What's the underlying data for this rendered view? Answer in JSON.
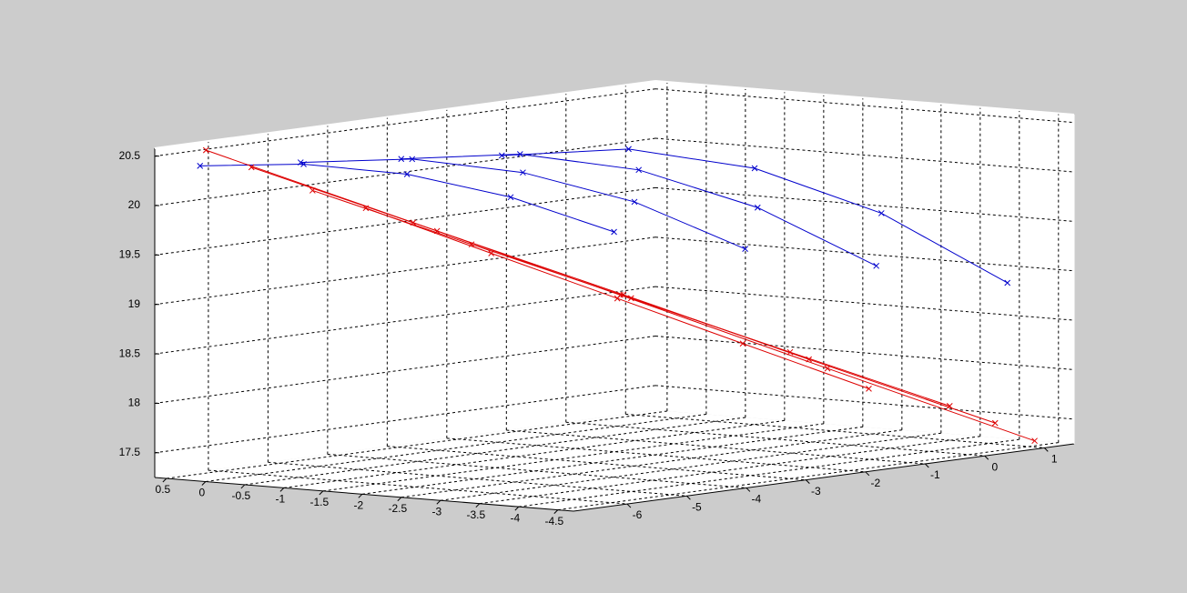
{
  "chart_data": {
    "type": "line3d",
    "xlim": [
      0.65,
      -4.7
    ],
    "ylim": [
      -6.9,
      1.5
    ],
    "zlim": [
      17.25,
      20.58
    ],
    "xticks": [
      0.5,
      0,
      -0.5,
      -1,
      -1.5,
      -2,
      -2.5,
      -3,
      -3.5,
      -4,
      -4.5
    ],
    "yticks": [
      -6,
      -5,
      -4,
      -3,
      -2,
      -1,
      0,
      1
    ],
    "zticks": [
      17.5,
      18,
      18.5,
      19,
      19.5,
      20,
      20.5
    ],
    "grid": true,
    "series": [
      {
        "color": "#0000cc",
        "x": [
          0.3,
          -0.78,
          -1.85,
          -2.93,
          -4.0
        ],
        "y": [
          -6.6,
          -6.28,
          -5.95,
          -5.63,
          -5.3
        ],
        "z": [
          20.4,
          20.46,
          20.4,
          20.21,
          19.9
        ]
      },
      {
        "color": "#0000cc",
        "x": [
          -0.3,
          -1.23,
          -2.15,
          -3.08,
          -4.0
        ],
        "y": [
          -5.7,
          -5.05,
          -4.4,
          -3.75,
          -3.1
        ],
        "z": [
          20.4,
          20.44,
          20.31,
          20.02,
          19.55
        ]
      },
      {
        "color": "#0000cc",
        "x": [
          -0.9,
          -1.68,
          -2.45,
          -3.23,
          -4.0
        ],
        "y": [
          -4.8,
          -3.83,
          -2.85,
          -1.88,
          -0.9
        ],
        "z": [
          20.4,
          20.42,
          20.23,
          19.82,
          19.2
        ]
      },
      {
        "color": "#0000cc",
        "x": [
          -1.5,
          -2.13,
          -2.75,
          -3.38,
          -4.0
        ],
        "y": [
          -3.9,
          -2.6,
          -1.3,
          0,
          1.3
        ],
        "z": [
          20.4,
          20.4,
          20.14,
          19.62,
          18.85
        ]
      },
      {
        "color": "#dd0000",
        "x": [
          0.3,
          -0.9,
          -2.1,
          -3.3,
          -4.5
        ],
        "y": [
          -6.5,
          -4.6,
          -2.7,
          -0.8,
          1.1
        ],
        "z": [
          20.55,
          19.74,
          18.93,
          18.11,
          17.3
        ]
      },
      {
        "color": "#dd0000",
        "x": [
          0.1,
          -1.0,
          -2.1,
          -3.2,
          -4.3
        ],
        "y": [
          -6.0,
          -4.33,
          -2.65,
          -0.98,
          0.7
        ],
        "z": [
          20.35,
          19.64,
          18.93,
          18.21,
          17.5
        ]
      },
      {
        "color": "#dd0000",
        "x": [
          -0.3,
          -1.25,
          -2.2,
          -3.15,
          -4.1
        ],
        "y": [
          -5.5,
          -4.08,
          -2.65,
          -1.23,
          0.2
        ],
        "z": [
          20.1,
          19.5,
          18.9,
          18.3,
          17.7
        ]
      },
      {
        "color": "#dd0000",
        "x": [
          -0.6,
          -1.35,
          -2.1,
          -2.85,
          -3.6
        ],
        "y": [
          -5.0,
          -3.88,
          -2.75,
          -1.63,
          -0.5
        ],
        "z": [
          19.9,
          19.4,
          18.9,
          18.4,
          17.9
        ]
      }
    ]
  }
}
